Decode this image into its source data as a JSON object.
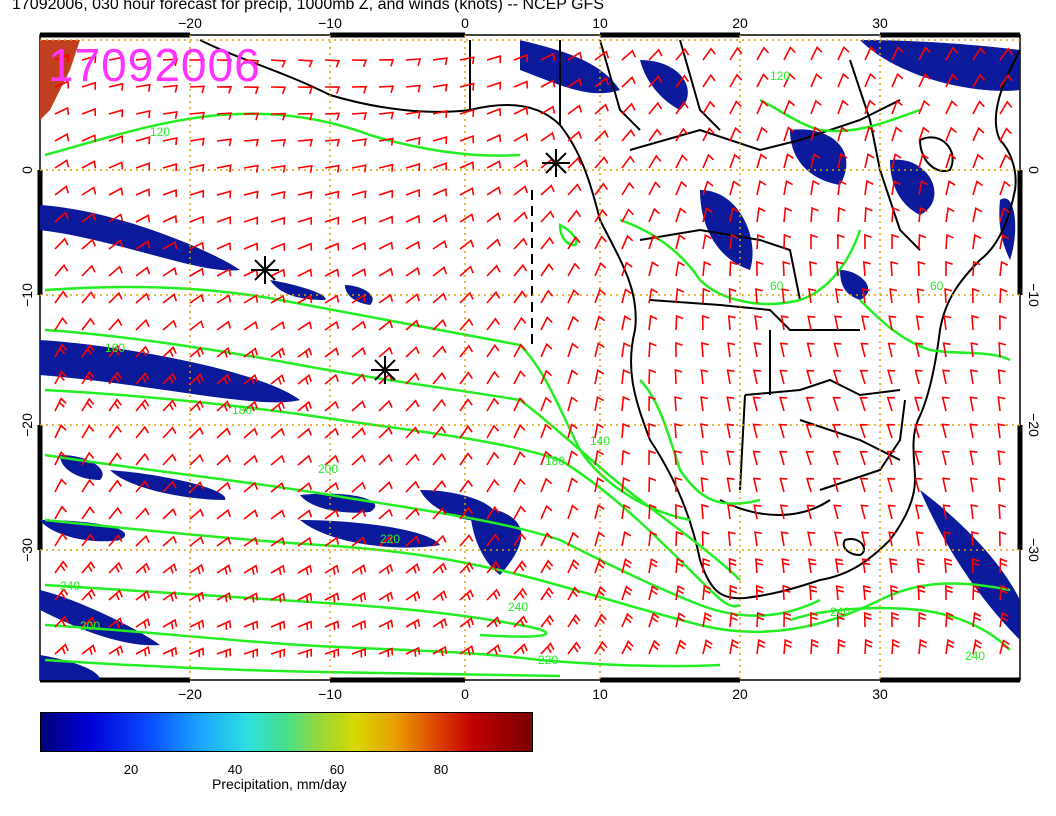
{
  "title": "17092006, 030 hour forecast for precip, 1000mb Z, and winds (knots) -- NCEP GFS",
  "stamp": "17092006",
  "axes": {
    "lon_ticks": [
      "−20",
      "−10",
      "0",
      "10",
      "20",
      "30"
    ],
    "lat_ticks": [
      "0",
      "−10",
      "−20",
      "−30"
    ]
  },
  "contour_labels": [
    "120",
    "160",
    "180",
    "200",
    "220",
    "240",
    "180",
    "220",
    "240",
    "240",
    "240",
    "200",
    "60",
    "60",
    "140",
    "120"
  ],
  "colorbar": {
    "ticks": [
      "20",
      "40",
      "60",
      "80"
    ],
    "label": "Precipitation, mm/day"
  },
  "colors": {
    "wind_barbs": "#ff0000",
    "contours": "#22ee22",
    "precip": "#0a1a9a",
    "grid": "#e0a000",
    "coast": "#000000",
    "stamp": "#ff33ff"
  }
}
